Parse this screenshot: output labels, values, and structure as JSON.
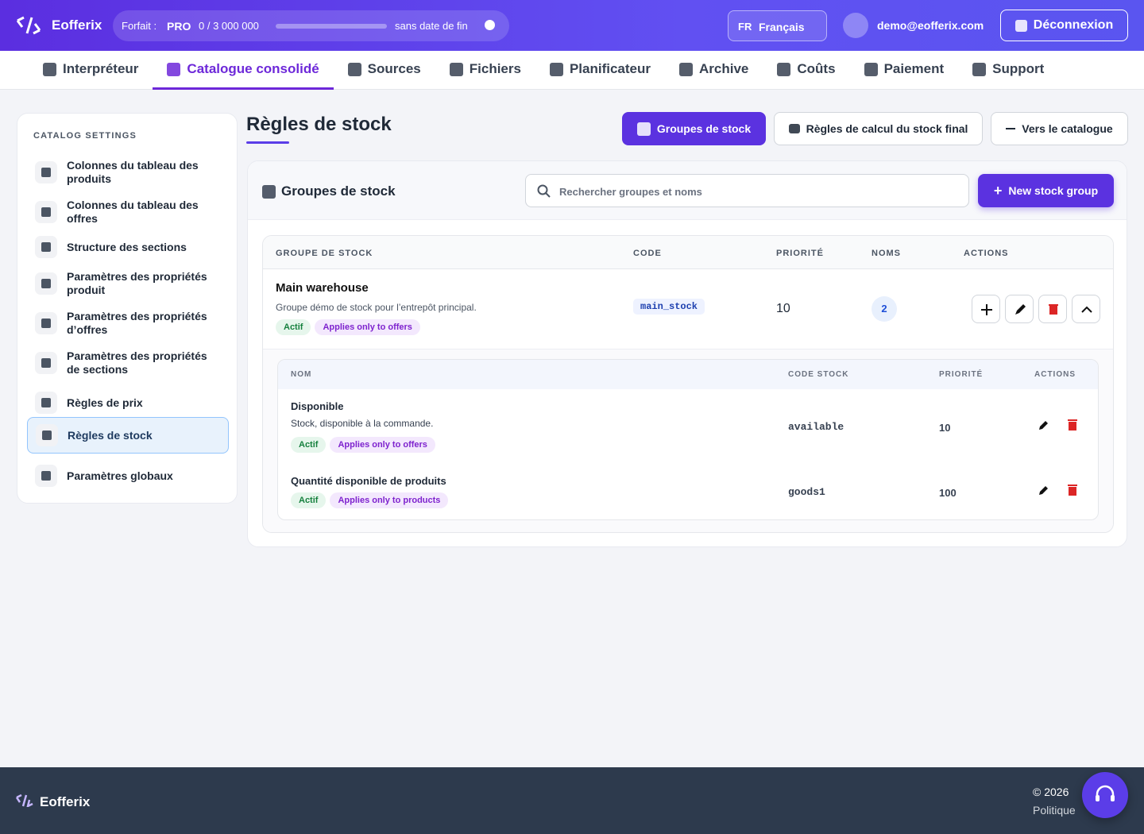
{
  "header": {
    "brand": "Eofferix",
    "plan_label": "Forfait :",
    "plan": "PRO",
    "usage": "0 / 3 000 000",
    "expiry": "sans date de fin",
    "lang_code": "FR",
    "lang": "Français",
    "user": "demo@eofferix.com",
    "logout": "Déconnexion"
  },
  "nav": {
    "items": [
      "Interpréteur",
      "Catalogue consolidé",
      "Sources",
      "Fichiers",
      "Planificateur",
      "Archive",
      "Coûts",
      "Paiement",
      "Support"
    ],
    "active": 1
  },
  "sidebar": {
    "heading": "CATALOG SETTINGS",
    "items": [
      "Colonnes du tableau des produits",
      "Colonnes du tableau des offres",
      "Structure des sections",
      "Paramètres des propriétés produit",
      "Paramètres des propriétés d’offres",
      "Paramètres des propriétés de sections",
      "Règles de prix",
      "Règles de stock",
      "Paramètres globaux"
    ],
    "active": 7
  },
  "page": {
    "title": "Règles de stock",
    "tabs": [
      "Groupes de stock",
      "Règles de calcul du stock final",
      "Vers le catalogue"
    ]
  },
  "panel": {
    "title": "Groupes de stock",
    "search_placeholder": "Rechercher groupes et noms",
    "new_button": "New stock group"
  },
  "table": {
    "columns": [
      "GROUPE DE STOCK",
      "CODE",
      "PRIORITÉ",
      "NOMS",
      "ACTIONS"
    ],
    "rows": [
      {
        "name": "Main warehouse",
        "description": "Groupe démo de stock pour l’entrepôt principal.",
        "badges": [
          "Actif",
          "Applies only to offers"
        ],
        "code": "main_stock",
        "priority": "10",
        "names": "2",
        "sub": {
          "columns": [
            "NOM",
            "CODE STOCK",
            "PRIORITÉ",
            "ACTIONS"
          ],
          "rows": [
            {
              "name": "Disponible",
              "description": "Stock, disponible à la commande.",
              "badges": [
                "Actif",
                "Applies only to offers"
              ],
              "code": "available",
              "priority": "10"
            },
            {
              "name": "Quantité disponible de produits",
              "badges": [
                "Actif",
                "Applies only to products"
              ],
              "code": "goods1",
              "priority": "100"
            }
          ]
        }
      }
    ]
  },
  "footer": {
    "brand": "Eofferix",
    "copyright": "© 2026",
    "link": "Politique"
  }
}
